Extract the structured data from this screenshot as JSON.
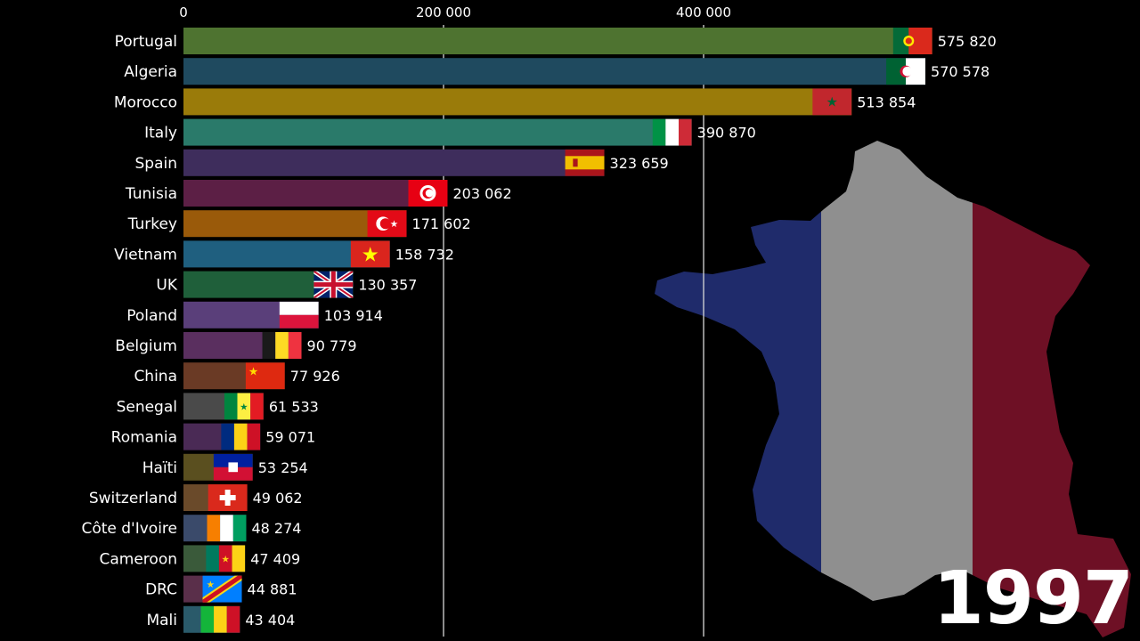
{
  "chart_data": {
    "type": "bar",
    "orientation": "horizontal",
    "year": "1997",
    "xlim": [
      0,
      740000
    ],
    "x_ticks": [
      {
        "value": 0,
        "label": "0"
      },
      {
        "value": 200000,
        "label": "200 000"
      },
      {
        "value": 400000,
        "label": "400 000"
      }
    ],
    "grid": true,
    "background_image": "france-map-tricolor",
    "bars": [
      {
        "country": "Portugal",
        "value": 575820,
        "label": "575 820",
        "color": "#4e7330",
        "flag": "portugal"
      },
      {
        "country": "Algeria",
        "value": 570578,
        "label": "570 578",
        "color": "#1f4a5f",
        "flag": "algeria"
      },
      {
        "country": "Morocco",
        "value": 513854,
        "label": "513 854",
        "color": "#9a7b0a",
        "flag": "morocco"
      },
      {
        "country": "Italy",
        "value": 390870,
        "label": "390 870",
        "color": "#2a7a6a",
        "flag": "italy"
      },
      {
        "country": "Spain",
        "value": 323659,
        "label": "323 659",
        "color": "#3e2d5c",
        "flag": "spain"
      },
      {
        "country": "Tunisia",
        "value": 203062,
        "label": "203 062",
        "color": "#5c1f45",
        "flag": "tunisia"
      },
      {
        "country": "Turkey",
        "value": 171602,
        "label": "171 602",
        "color": "#9a5a0a",
        "flag": "turkey"
      },
      {
        "country": "Vietnam",
        "value": 158732,
        "label": "158 732",
        "color": "#1f5f7f",
        "flag": "vietnam"
      },
      {
        "country": "UK",
        "value": 130357,
        "label": "130 357",
        "color": "#1f5f3a",
        "flag": "uk"
      },
      {
        "country": "Poland",
        "value": 103914,
        "label": "103 914",
        "color": "#5a3f7a",
        "flag": "poland"
      },
      {
        "country": "Belgium",
        "value": 90779,
        "label": "90 779",
        "color": "#5a2f5f",
        "flag": "belgium"
      },
      {
        "country": "China",
        "value": 77926,
        "label": "77 926",
        "color": "#6a3a25",
        "flag": "china"
      },
      {
        "country": "Senegal",
        "value": 61533,
        "label": "61 533",
        "color": "#4a4a4a",
        "flag": "senegal"
      },
      {
        "country": "Romania",
        "value": 59071,
        "label": "59 071",
        "color": "#4a2a55",
        "flag": "romania"
      },
      {
        "country": "Haïti",
        "value": 53254,
        "label": "53 254",
        "color": "#5a4f1f",
        "flag": "haiti"
      },
      {
        "country": "Switzerland",
        "value": 49062,
        "label": "49 062",
        "color": "#6a4a2a",
        "flag": "switzerland"
      },
      {
        "country": "Côte d'Ivoire",
        "value": 48274,
        "label": "48 274",
        "color": "#3a4a6a",
        "flag": "cote-divoire"
      },
      {
        "country": "Cameroon",
        "value": 47409,
        "label": "47 409",
        "color": "#3a5a3a",
        "flag": "cameroon"
      },
      {
        "country": "DRC",
        "value": 44881,
        "label": "44 881",
        "color": "#5a2f4a",
        "flag": "drc"
      },
      {
        "country": "Mali",
        "value": 43404,
        "label": "43 404",
        "color": "#2a5a6a",
        "flag": "mali"
      }
    ]
  }
}
